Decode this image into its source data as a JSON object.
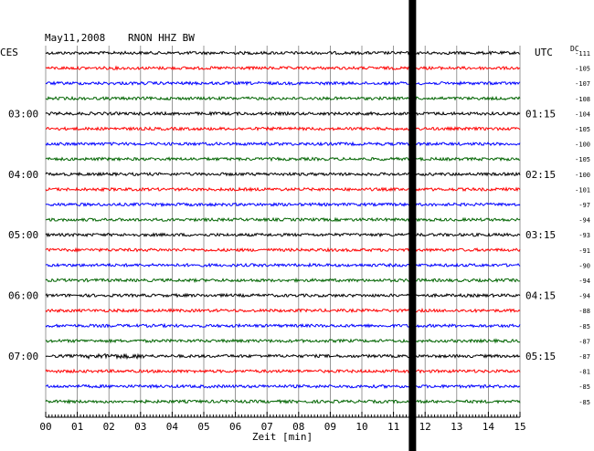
{
  "header": {
    "date": "May11,2008",
    "station": "RNON HHZ BW",
    "left_zone": "CES",
    "right_zone": "UTC",
    "dc_label": "DC"
  },
  "colors": {
    "black": "#000000",
    "red": "#ff0000",
    "blue": "#0000ff",
    "green": "#006400",
    "grid": "#7f7f7f",
    "event_bar": "#000000"
  },
  "chart_data": {
    "type": "line",
    "subtype": "helicorder",
    "x_axis": {
      "label": "Zeit [min]",
      "range": [
        0,
        15
      ],
      "ticks": [
        "00",
        "01",
        "02",
        "03",
        "04",
        "05",
        "06",
        "07",
        "08",
        "09",
        "10",
        "11",
        "12",
        "13",
        "14",
        "15"
      ]
    },
    "left_time_labels": [
      {
        "label": "03:00",
        "row": 4
      },
      {
        "label": "04:00",
        "row": 8
      },
      {
        "label": "05:00",
        "row": 12
      },
      {
        "label": "06:00",
        "row": 16
      },
      {
        "label": "07:00",
        "row": 20
      }
    ],
    "right_time_labels": [
      {
        "label": "01:15",
        "row": 4
      },
      {
        "label": "02:15",
        "row": 8
      },
      {
        "label": "03:15",
        "row": 12
      },
      {
        "label": "04:15",
        "row": 16
      },
      {
        "label": "05:15",
        "row": 20
      }
    ],
    "row_colors": [
      "black",
      "red",
      "blue",
      "green"
    ],
    "row_count": 24,
    "dc_offsets": [
      -111,
      -105,
      -107,
      -108,
      -104,
      -105,
      -100,
      -105,
      -100,
      -101,
      -97,
      -94,
      -93,
      -91,
      -90,
      -94,
      -94,
      -88,
      -85,
      -87,
      -87,
      -81,
      -85,
      -85
    ],
    "event_marker_minute": 11.6,
    "grid": true
  }
}
